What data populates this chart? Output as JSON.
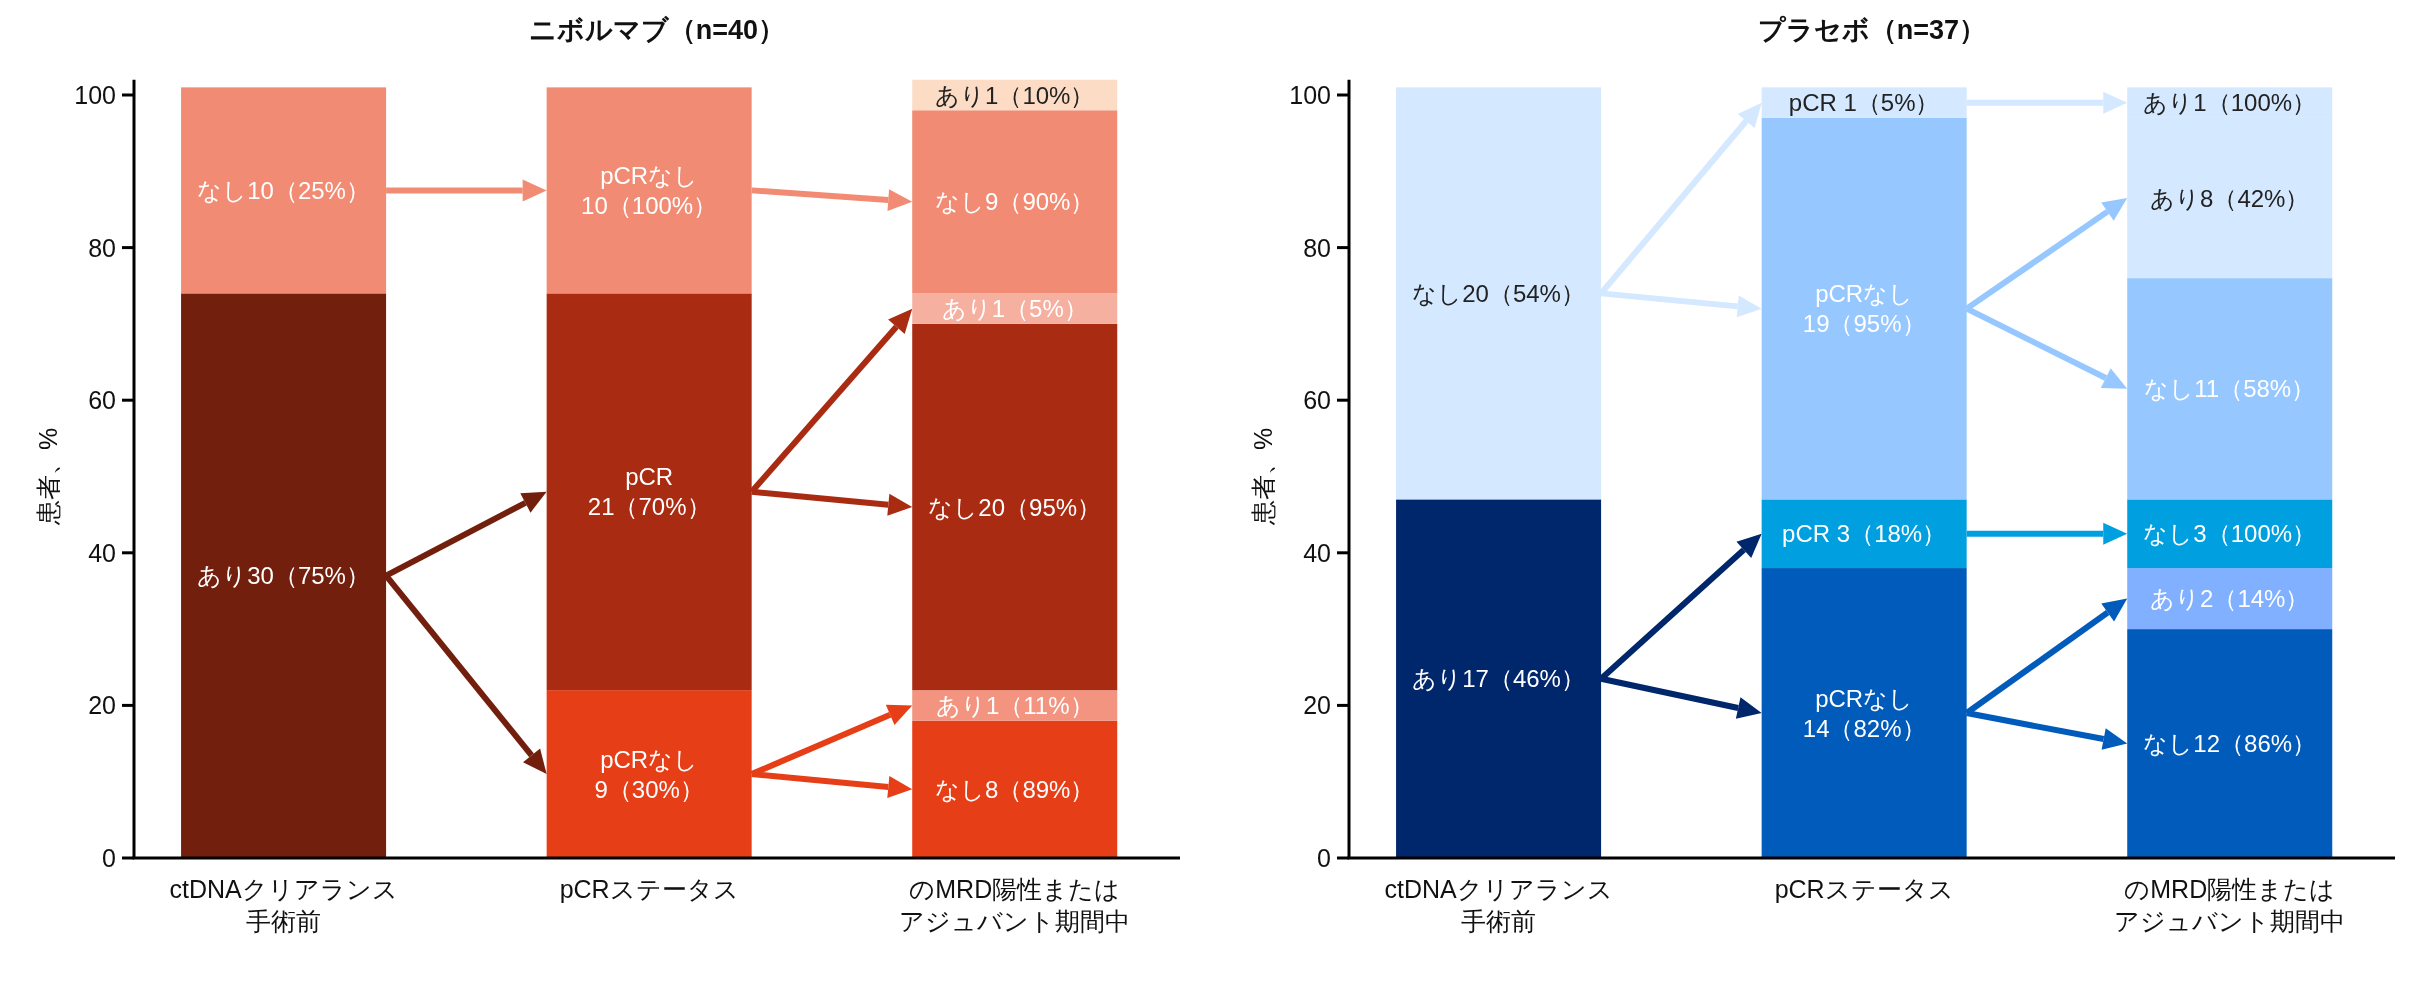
{
  "chart_data": [
    {
      "type": "bar",
      "stacked": true,
      "title": "ニボルマブ（n=40）",
      "ylabel": "患者、%",
      "categories": [
        "ctDNAクリアランス手術前",
        "pCRステータス",
        "のMRD陽性またはアジュバント期間中"
      ],
      "ylim": [
        0,
        102
      ],
      "yticks": [
        0,
        20,
        40,
        60,
        80,
        100
      ],
      "series": [
        {
          "values": [
            74,
            22,
            18
          ],
          "colors": [
            "#731f0d",
            "#e63e17",
            "#e63e17"
          ]
        },
        {
          "values": [
            27,
            52,
            4
          ],
          "colors": [
            "#f28b73",
            "#a92b12",
            "#f29480"
          ]
        },
        {
          "values": [
            null,
            27,
            48
          ],
          "colors": [
            null,
            "#f28b73",
            "#a92b12"
          ]
        },
        {
          "values": [
            null,
            null,
            4
          ],
          "colors": [
            null,
            null,
            "#f5b0a0"
          ]
        },
        {
          "values": [
            null,
            null,
            24
          ],
          "colors": [
            null,
            null,
            "#f28b73"
          ]
        },
        {
          "values": [
            null,
            null,
            4
          ],
          "colors": [
            null,
            null,
            "#fddcc5"
          ]
        }
      ],
      "annotations": [
        "あり30（75%）",
        "なし10（25%）",
        "pCRなし\n9（30%）",
        "pCR\n21（70%）",
        "pCRなし\n10（100%）",
        "なし8（89%）",
        "あり1（11%）",
        "なし20（95%）",
        "あり1（5%）",
        "なし9（90%）",
        "あり1（10%）"
      ]
    },
    {
      "type": "bar",
      "stacked": true,
      "title": "プラセボ（n=37）",
      "ylabel": "患者、%",
      "categories": [
        "ctDNAクリアランス手術前",
        "pCRステータス",
        "のMRD陽性またはアジュバント期間中"
      ],
      "ylim": [
        0,
        102
      ],
      "yticks": [
        0,
        20,
        40,
        60,
        80,
        100
      ],
      "series": [
        {
          "values": [
            47,
            38,
            30
          ],
          "colors": [
            "#00266b",
            "#005bbb",
            "#005bbb"
          ]
        },
        {
          "values": [
            54,
            9,
            8
          ],
          "colors": [
            "#d4e8ff",
            "#00a0e0",
            "#80b0ff"
          ]
        },
        {
          "values": [
            null,
            50,
            9
          ],
          "colors": [
            null,
            "#96c8ff",
            "#00a0e0"
          ]
        },
        {
          "values": [
            null,
            4,
            29
          ],
          "colors": [
            null,
            "#d4e8ff",
            "#96c8ff"
          ]
        },
        {
          "values": [
            null,
            null,
            21
          ],
          "colors": [
            null,
            null,
            "#d4e8ff"
          ]
        },
        {
          "values": [
            null,
            null,
            4
          ],
          "colors": [
            null,
            null,
            "#d4e8ff"
          ]
        }
      ],
      "annotations": [
        "あり17（46%）",
        "なし20（54%）",
        "pCRなし\n14（82%）",
        "pCR 3（18%）",
        "pCRなし\n19（95%）",
        "pCR 1（5%）",
        "なし12（86%）",
        "あり2（14%）",
        "なし3（100%）",
        "なし11（58%）",
        "あり8（42%）",
        "あり1（100%）"
      ]
    }
  ]
}
